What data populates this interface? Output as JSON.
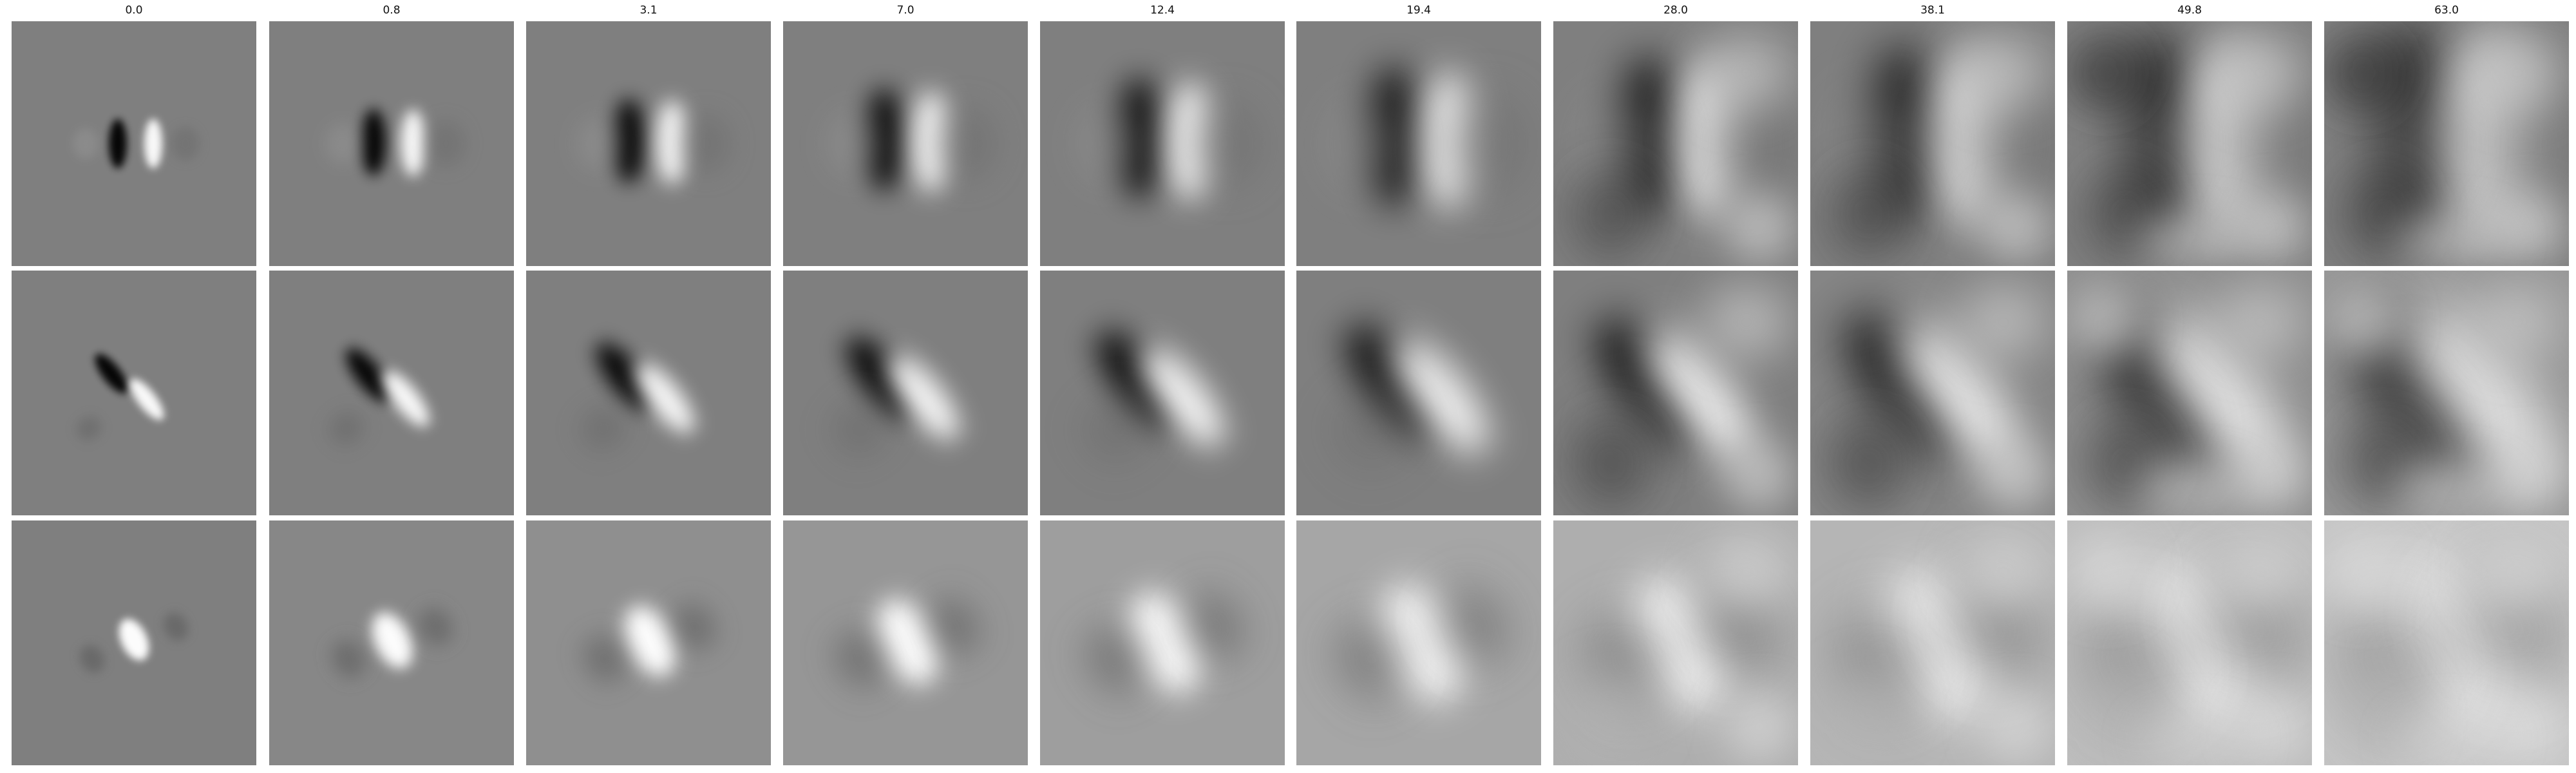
{
  "figure": {
    "column_titles": [
      "0.0",
      "0.8",
      "3.1",
      "7.0",
      "12.4",
      "19.4",
      "28.0",
      "38.1",
      "49.8",
      "63.0"
    ],
    "rows": 3,
    "columns": 10,
    "colormap": "grayscale",
    "colors": {
      "background": "#ffffff",
      "tile_neutral_gray": "#7f7f7f"
    }
  }
}
